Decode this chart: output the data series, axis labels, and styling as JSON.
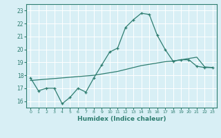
{
  "xlabel": "Humidex (Indice chaleur)",
  "ylabel": "",
  "x": [
    0,
    1,
    2,
    3,
    4,
    5,
    6,
    7,
    8,
    9,
    10,
    11,
    12,
    13,
    14,
    15,
    16,
    17,
    18,
    19,
    20,
    21,
    22,
    23
  ],
  "line1_y": [
    17.8,
    16.8,
    17.0,
    17.0,
    15.8,
    16.3,
    17.0,
    16.7,
    17.8,
    18.8,
    19.8,
    20.1,
    21.7,
    22.3,
    22.8,
    22.7,
    21.1,
    20.0,
    19.1,
    19.2,
    19.2,
    18.7,
    18.6,
    18.6
  ],
  "line2_y": [
    17.6,
    17.65,
    17.7,
    17.75,
    17.8,
    17.85,
    17.9,
    17.95,
    18.0,
    18.1,
    18.2,
    18.3,
    18.45,
    18.6,
    18.75,
    18.85,
    18.95,
    19.05,
    19.1,
    19.2,
    19.3,
    19.4,
    18.65,
    18.6
  ],
  "line_color": "#2e7d70",
  "bg_color": "#d8eff5",
  "grid_color": "#ffffff",
  "ylim": [
    15.5,
    23.5
  ],
  "yticks": [
    16,
    17,
    18,
    19,
    20,
    21,
    22,
    23
  ],
  "xlim": [
    -0.5,
    23.5
  ],
  "xticks": [
    0,
    1,
    2,
    3,
    4,
    5,
    6,
    7,
    8,
    9,
    10,
    11,
    12,
    13,
    14,
    15,
    16,
    17,
    18,
    19,
    20,
    21,
    22,
    23
  ]
}
